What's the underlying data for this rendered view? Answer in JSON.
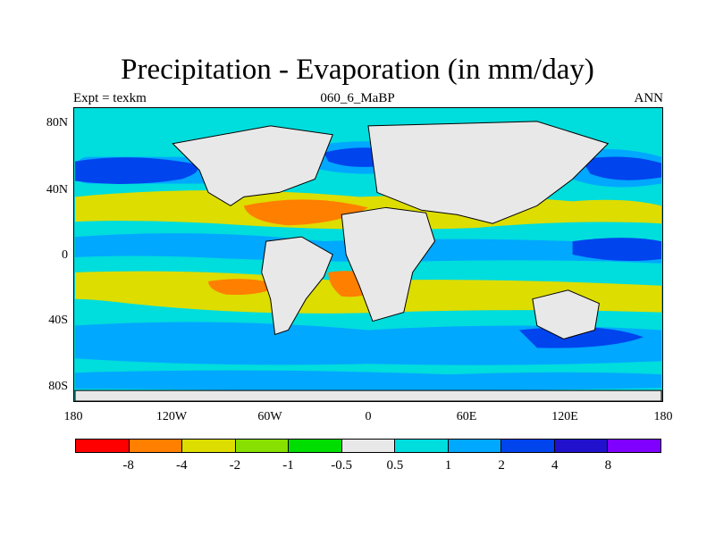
{
  "title": "Precipitation - Evaporation (in mm/day)",
  "subtitle_left": "Expt = texkm",
  "subtitle_center": "060_6_MaBP",
  "subtitle_right": "ANN",
  "y_ticks": [
    "80N",
    "40N",
    "0",
    "40S",
    "80S"
  ],
  "x_ticks": [
    "180",
    "120W",
    "60W",
    "0",
    "60E",
    "120E",
    "180"
  ],
  "colorbar": {
    "colors": [
      "#ff0000",
      "#ff7f00",
      "#dddd00",
      "#88e000",
      "#00dd00",
      "#e8e8e8",
      "#00dddd",
      "#00a8ff",
      "#0044ee",
      "#2211cc",
      "#7f00ff"
    ],
    "labels": [
      "-8",
      "-4",
      "-2",
      "-1",
      "-0.5",
      "0.5",
      "1",
      "2",
      "4",
      "8"
    ]
  },
  "palette": {
    "ocean": "#00dddd",
    "land": "#e8e8e8",
    "blue": "#00a8ff",
    "dark_blue": "#0044ee",
    "navy": "#2211cc",
    "yellow": "#dddd00",
    "orange": "#ff7f00",
    "light_green": "#88e000",
    "coast": "#000000"
  }
}
